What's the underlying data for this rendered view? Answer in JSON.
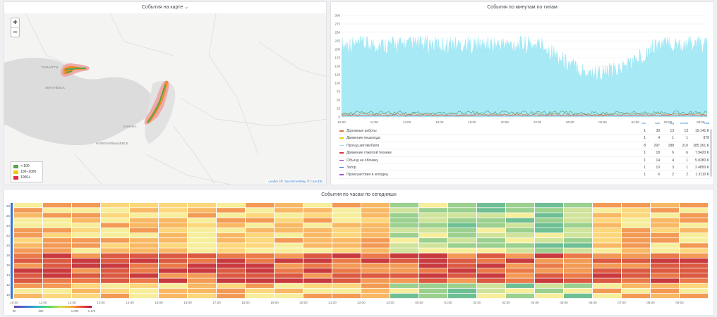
{
  "map_panel": {
    "title": "События на карте",
    "zoom_in": "+",
    "zoom_out": "−",
    "place_labels": [
      "ТОЛЬЯТТИ",
      "SAMARA",
      "НОВОКУЙБЫШЕВСК",
      "ЖИГУЛЁВСК"
    ],
    "legend": [
      {
        "label": "< 100",
        "color": "#56a64b"
      },
      {
        "label": "100–1000",
        "color": "#f2cc0c"
      },
      {
        "label": "1000+",
        "color": "#e02f44"
      }
    ],
    "attribution": {
      "leaflet": "Leaflet",
      "sep1": " | © ",
      "osm": "OpenStreetMap",
      "sep2": " © ",
      "carto": "CartoDB"
    }
  },
  "ts_panel": {
    "title": "События по минутам по типам",
    "y_ticks": [
      "300",
      "275",
      "250",
      "225",
      "200",
      "175",
      "150",
      "125",
      "100",
      "75",
      "50",
      "25",
      "0"
    ],
    "x_ticks": [
      "10:00",
      "12:00",
      "14:00",
      "16:00",
      "18:00",
      "20:00",
      "22:00",
      "00:00",
      "02:00",
      "04:00",
      "06:00",
      "08:00"
    ],
    "legend_headers": [
      "min",
      "max",
      "avg",
      "current",
      "total"
    ],
    "legend": [
      {
        "name": "Дорожные работы",
        "color": "#e0752d",
        "min": "1",
        "max": "39",
        "avg": "13",
        "current": "13",
        "total": "19.141 K"
      },
      {
        "name": "Движение пешехода",
        "color": "#f2cc0c",
        "min": "1",
        "max": "4",
        "avg": "1",
        "current": "1",
        "total": "878"
      },
      {
        "name": "Проезд автомобиля",
        "color": "#8ae3f2",
        "min": "8",
        "max": "297",
        "avg": "188",
        "current": "210",
        "total": "285.361 K"
      },
      {
        "name": "Движение тяжёлой техники",
        "color": "#e02f44",
        "min": "1",
        "max": "18",
        "avg": "6",
        "current": "6",
        "total": "7.9420 K"
      },
      {
        "name": "Объезд на обочину",
        "color": "#8f3bb8",
        "min": "1",
        "max": "14",
        "avg": "4",
        "current": "1",
        "total": "5.0380 K"
      },
      {
        "name": "Затор",
        "color": "#3274d9",
        "min": "1",
        "max": "10",
        "avg": "3",
        "current": "1",
        "total": "2.4850 K"
      },
      {
        "name": "Происшествие в колодец",
        "color": "#a352cc",
        "min": "1",
        "max": "6",
        "avg": "2",
        "current": "2",
        "total": "1.3110 K"
      }
    ]
  },
  "hm_panel": {
    "title": "События по часам по сегодняшн",
    "y_ticks": [
      "28",
      "26",
      "24",
      "22",
      "20",
      "18",
      "16",
      "14",
      "12",
      "10"
    ],
    "x_ticks": [
      "10:00",
      "11:00",
      "12:00",
      "13:00",
      "14:00",
      "15:00",
      "16:00",
      "17:00",
      "18:00",
      "19:00",
      "20:00",
      "21:00",
      "22:00",
      "23:00",
      "00:00",
      "01:00",
      "02:00",
      "03:00",
      "04:00",
      "05:00",
      "06:00",
      "07:00",
      "08:00",
      "09:00"
    ],
    "scale_ticks": [
      "90",
      "500",
      "1,000",
      "1,172"
    ]
  }
}
